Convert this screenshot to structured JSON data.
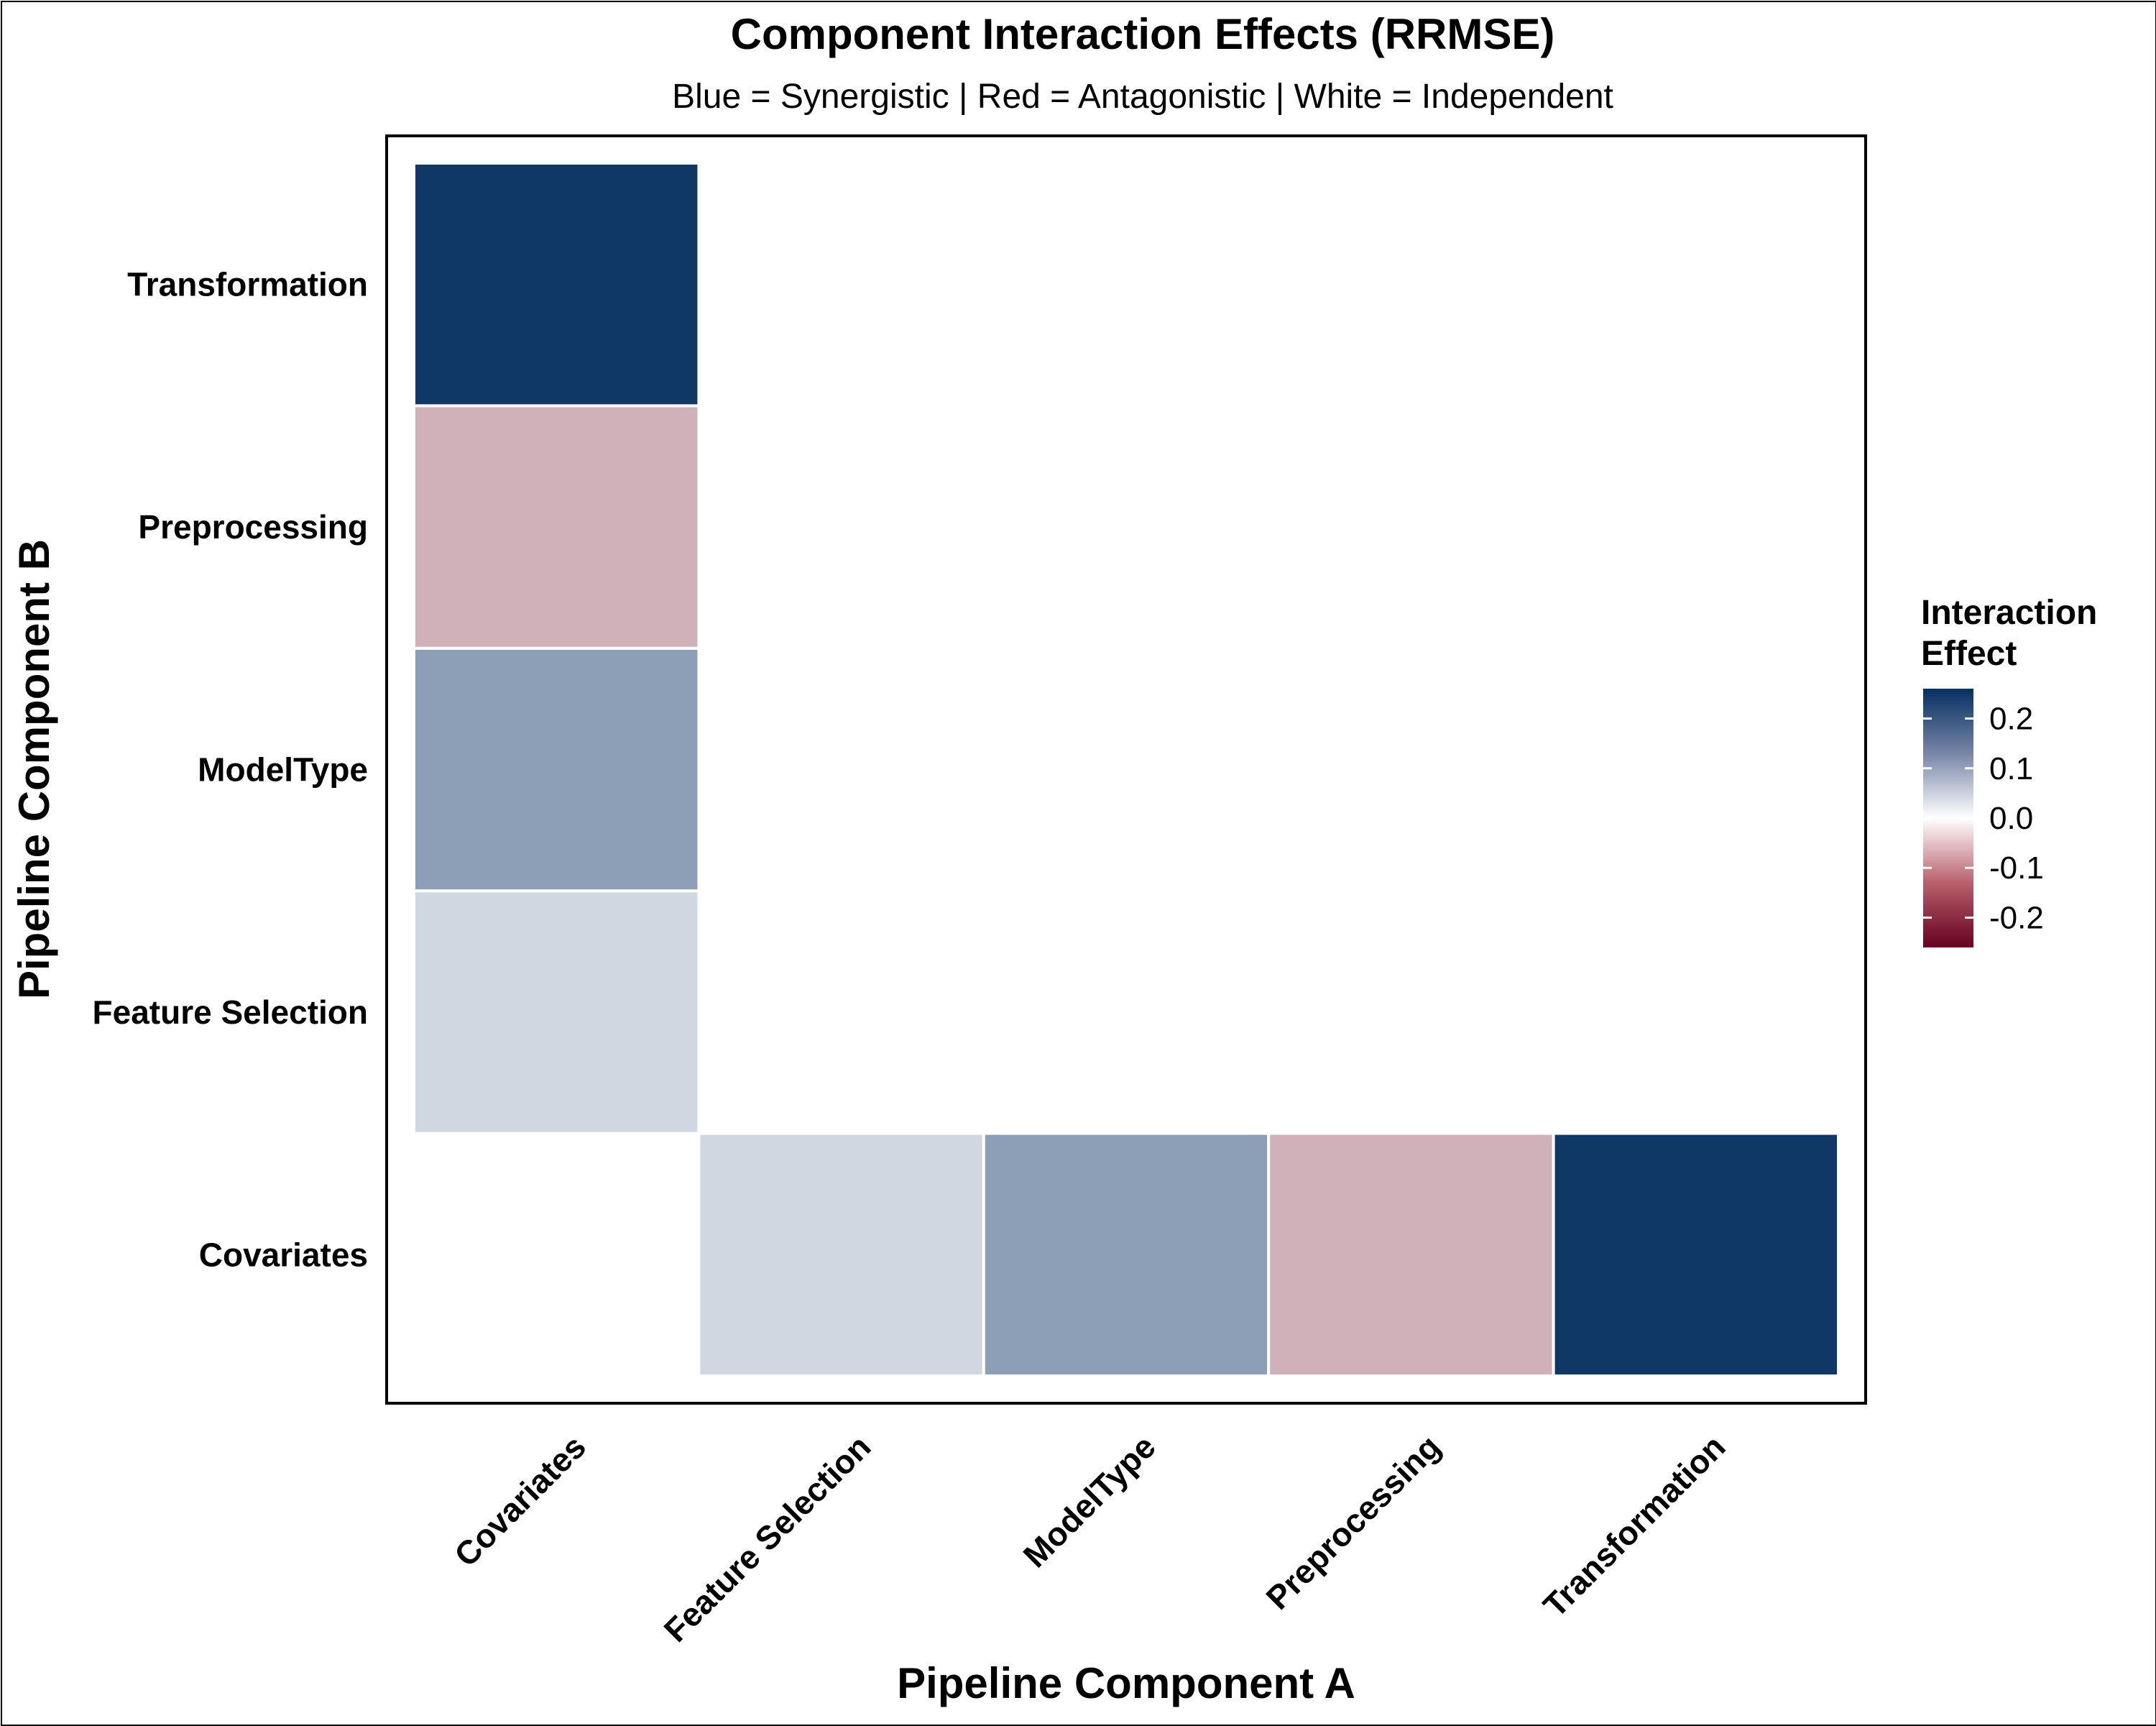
{
  "chart_data": {
    "type": "heatmap",
    "title": "Component Interaction Effects (RRMSE)",
    "subtitle": "Blue = Synergistic | Red = Antagonistic | White = Independent",
    "xlabel": "Pipeline Component A",
    "ylabel": "Pipeline Component B",
    "x_categories": [
      "Covariates",
      "Feature Selection",
      "ModelType",
      "Preprocessing",
      "Transformation"
    ],
    "y_categories": [
      "Covariates",
      "Feature Selection",
      "ModelType",
      "Preprocessing",
      "Transformation"
    ],
    "cells": [
      {
        "x": "Covariates",
        "y": "Feature Selection",
        "value": 0.05
      },
      {
        "x": "Covariates",
        "y": "ModelType",
        "value": 0.12
      },
      {
        "x": "Covariates",
        "y": "Preprocessing",
        "value": -0.08
      },
      {
        "x": "Covariates",
        "y": "Transformation",
        "value": 0.25
      },
      {
        "x": "Feature Selection",
        "y": "Covariates",
        "value": 0.05
      },
      {
        "x": "ModelType",
        "y": "Covariates",
        "value": 0.12
      },
      {
        "x": "Preprocessing",
        "y": "Covariates",
        "value": -0.08
      },
      {
        "x": "Transformation",
        "y": "Covariates",
        "value": 0.25
      }
    ],
    "legend": {
      "title_lines": [
        "Interaction",
        "Effect"
      ],
      "ticks": [
        0.2,
        0.1,
        0.0,
        -0.1,
        -0.2
      ],
      "tick_labels": [
        "0.2",
        "0.1",
        "0.0",
        "-0.1",
        "-0.2"
      ],
      "range": [
        -0.26,
        0.26
      ],
      "colors": {
        "high": "#053061",
        "mid": "#ffffff",
        "low": "#67001f"
      },
      "position": "right"
    },
    "grid": false
  }
}
